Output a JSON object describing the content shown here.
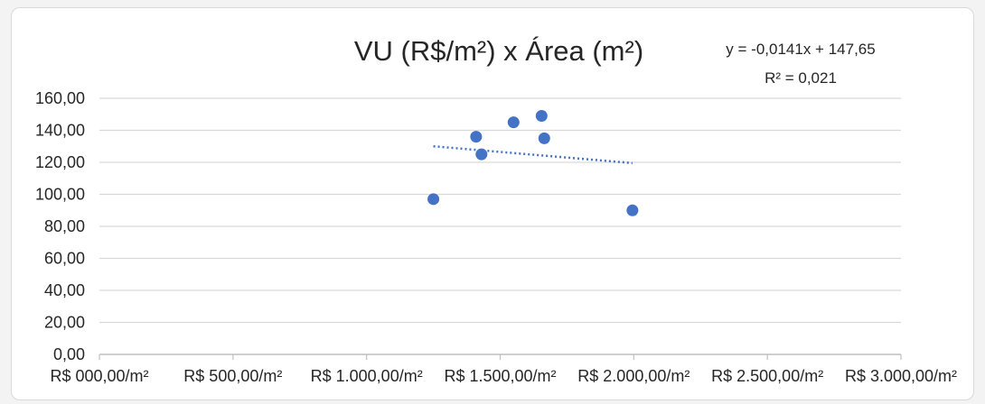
{
  "chart_data": {
    "type": "scatter",
    "title": "VU (R$/m²) x Área (m²)",
    "xlabel": "",
    "ylabel": "",
    "xlim": [
      0,
      3000
    ],
    "ylim": [
      0,
      160
    ],
    "x_ticks": [
      0,
      500,
      1000,
      1500,
      2000,
      2500,
      3000
    ],
    "x_tick_labels": [
      "R$ 000,00/m²",
      "R$ 500,00/m²",
      "R$ 1.000,00/m²",
      "R$ 1.500,00/m²",
      "R$ 2.000,00/m²",
      "R$ 2.500,00/m²",
      "R$ 3.000,00/m²"
    ],
    "y_ticks": [
      0,
      20,
      40,
      60,
      80,
      100,
      120,
      140,
      160
    ],
    "y_tick_labels": [
      "0,00",
      "20,00",
      "40,00",
      "60,00",
      "80,00",
      "100,00",
      "120,00",
      "140,00",
      "160,00"
    ],
    "grid": true,
    "legend": "none",
    "series": [
      {
        "color": "#4472c4",
        "points": [
          {
            "x": 1250,
            "y": 97
          },
          {
            "x": 1410,
            "y": 136
          },
          {
            "x": 1430,
            "y": 125
          },
          {
            "x": 1550,
            "y": 145
          },
          {
            "x": 1655,
            "y": 149
          },
          {
            "x": 1665,
            "y": 135
          },
          {
            "x": 1995,
            "y": 90
          }
        ]
      }
    ],
    "trendline": {
      "kind": "linear",
      "slope": -0.0141,
      "intercept": 147.65,
      "x_range": [
        1250,
        1995
      ],
      "style": "dotted",
      "color": "#4472c4",
      "equation_label": "y = -0,0141x + 147,65",
      "r2_label": "R² = 0,021"
    }
  }
}
